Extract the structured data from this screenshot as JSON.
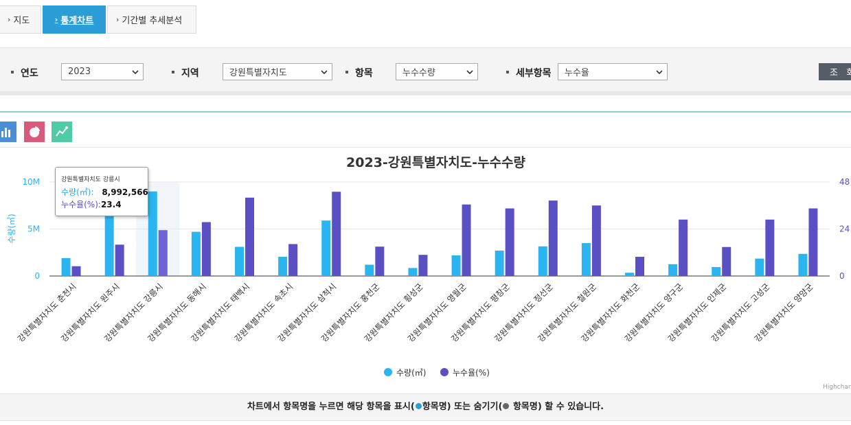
{
  "tabs": [
    {
      "label": "지도",
      "arrow": "›"
    },
    {
      "label": "통계차트",
      "arrow": "›"
    },
    {
      "label": "기간별 추세분석",
      "arrow": "›"
    }
  ],
  "filters": {
    "year_label": "연도",
    "year_value": "2023",
    "region_label": "지역",
    "region_value": "강원특별자치도",
    "item_label": "항목",
    "item_value": "누수수량",
    "detail_label": "세부항목",
    "detail_value": "누수율",
    "search_label": "조 회"
  },
  "chart_icons": [
    "bar-chart-icon",
    "pie-chart-icon",
    "line-chart-icon"
  ],
  "colors": {
    "series1": "#2bb5f0",
    "series2": "#5b4fc4",
    "highlight": "#6c63d6"
  },
  "chart_data": {
    "type": "bar",
    "title": "2023-강원특별자치도-누수수량",
    "ylabel": "수량(㎥)",
    "ylim": [
      0,
      10000000
    ],
    "y_ticks": [
      "0",
      "5M",
      "10M"
    ],
    "y2lim": [
      0,
      48
    ],
    "y2_ticks": [
      "0",
      "24",
      "48"
    ],
    "categories": [
      "강원특별자치도 춘천시",
      "강원특별자치도 원주시",
      "강원특별자치도 강릉시",
      "강원특별자치도 동해시",
      "강원특별자치도 태백시",
      "강원특별자치도 속초시",
      "강원특별자치도 삼척시",
      "강원특별자치도 홍천군",
      "강원특별자치도 횡성군",
      "강원특별자치도 영월군",
      "강원특별자치도 평창군",
      "강원특별자치도 정선군",
      "강원특별자치도 철원군",
      "강원특별자치도 화천군",
      "강원특별자치도 양구군",
      "강원특별자치도 인제군",
      "강원특별자치도 고성군",
      "강원특별자치도 양양군"
    ],
    "series": [
      {
        "name": "수량(㎥)",
        "axis": "left",
        "values": [
          1900000,
          6800000,
          8992566,
          4700000,
          3100000,
          2050000,
          5900000,
          1200000,
          850000,
          2200000,
          2700000,
          3150000,
          3500000,
          350000,
          1250000,
          950000,
          1850000,
          2350000
        ]
      },
      {
        "name": "누수율(%)",
        "axis": "right",
        "values": [
          5.0,
          16.0,
          23.4,
          27.5,
          40.0,
          16.3,
          43.0,
          15.0,
          10.8,
          36.5,
          34.5,
          38.5,
          36.0,
          9.8,
          28.8,
          14.8,
          28.8,
          34.5
        ]
      }
    ],
    "legend_position": "bottom-center",
    "highlight_index": 2,
    "tooltip": {
      "header": "강원특별자치도 강릉시",
      "row1_name": "수량(㎥):",
      "row1_value": "8,992,566",
      "row2_name": "누수율(%):",
      "row2_value": "23.4"
    },
    "credits": "Highcharts.com"
  },
  "notice": {
    "part1": "차트에서 항목명을 누르면 해당 항목을 표시(",
    "part2": "항목명) 또는 숨기기(",
    "part3": " 항목명) 할 수 있습니다."
  }
}
